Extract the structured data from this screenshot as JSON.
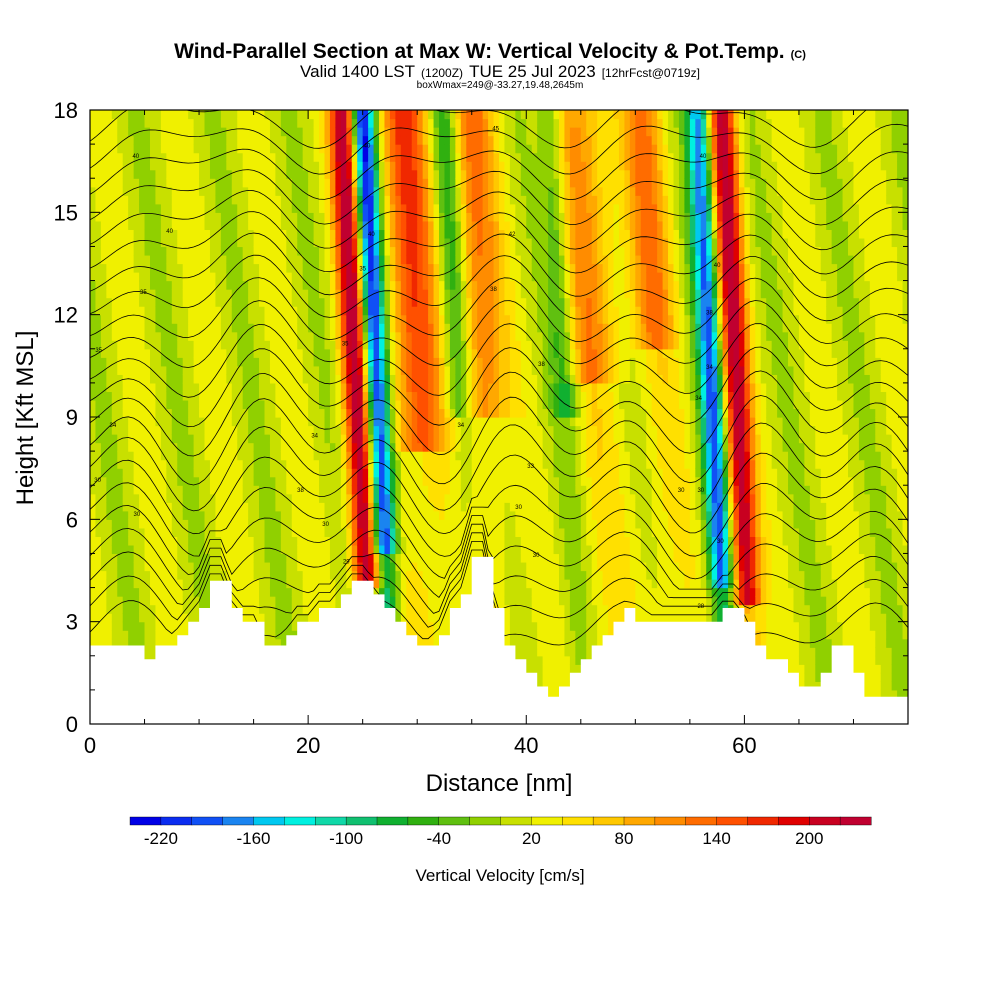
{
  "chart_data": {
    "type": "heatmap",
    "title": {
      "main": "Wind-Parallel Section at Max W: Vertical Velocity & Pot.Temp.",
      "copyright": "(C)",
      "valid_prefix": "Valid 1400 LST",
      "utc": "(1200Z)",
      "date": "TUE 25 Jul 2023",
      "forecast": "[12hrFcst@0719z]",
      "box_info": "boxWmax=249@-33.27,19.48,2645m"
    },
    "xlabel": "Distance [nm]",
    "ylabel": "Height [Kft MSL]",
    "xlim": [
      0,
      75
    ],
    "ylim": [
      0,
      18
    ],
    "x_ticks": [
      "0",
      "20",
      "40",
      "60"
    ],
    "x_tick_values": [
      0,
      20,
      40,
      60
    ],
    "y_ticks": [
      "0",
      "3",
      "6",
      "9",
      "12",
      "15",
      "18"
    ],
    "y_tick_values": [
      0,
      3,
      6,
      9,
      12,
      15,
      18
    ],
    "colorbar": {
      "title": "Vertical Velocity [cm/s]",
      "min": -240,
      "max": 240,
      "step": 20,
      "labels": [
        "-220",
        "-160",
        "-100",
        "-40",
        "20",
        "80",
        "140",
        "200"
      ],
      "label_values": [
        -220,
        -160,
        -100,
        -40,
        20,
        80,
        140,
        200
      ],
      "colors": [
        "#0000e6",
        "#0a2cf0",
        "#1050f5",
        "#1a84f0",
        "#00c8f0",
        "#00f0e0",
        "#10d8a8",
        "#10c070",
        "#10b030",
        "#30b010",
        "#60c010",
        "#90d000",
        "#c8e000",
        "#f0f000",
        "#ffe000",
        "#ffc800",
        "#ffa800",
        "#ff8c00",
        "#ff6c00",
        "#ff5000",
        "#f02800",
        "#e00000",
        "#c80020",
        "#c00030"
      ]
    },
    "updraft_x": [
      24.5,
      30,
      36,
      46,
      52,
      59.5
    ],
    "downdraft_x": [
      26,
      34,
      43.5,
      56.5
    ],
    "terrain": {
      "x": [
        0,
        4,
        5,
        6,
        7,
        8,
        9,
        10,
        11,
        12,
        13,
        14,
        15,
        16,
        17,
        18,
        19,
        20,
        21,
        22,
        23,
        24,
        25,
        26,
        27,
        28,
        29,
        30,
        31,
        32,
        33,
        34,
        35,
        36,
        37,
        38,
        39,
        40,
        41,
        42,
        43,
        44,
        45,
        46,
        47,
        48,
        49,
        50,
        51,
        52,
        53,
        54,
        55,
        56,
        57,
        58,
        59,
        60,
        61,
        62,
        63,
        64,
        65,
        66,
        67,
        68,
        69,
        70,
        71,
        72,
        73,
        74,
        75
      ],
      "kft": [
        2.3,
        2.3,
        1.9,
        2.3,
        2.3,
        2.6,
        3.0,
        3.4,
        4.2,
        4.2,
        3.4,
        3.0,
        3.0,
        2.3,
        2.3,
        2.6,
        3.0,
        3.0,
        3.4,
        3.4,
        3.8,
        4.2,
        4.2,
        3.8,
        3.4,
        3.0,
        2.6,
        2.3,
        2.3,
        2.6,
        3.4,
        3.8,
        4.9,
        4.9,
        3.4,
        2.3,
        1.9,
        1.5,
        1.1,
        0.8,
        1.1,
        1.5,
        1.9,
        2.3,
        2.6,
        3.0,
        3.4,
        3.0,
        3.0,
        3.0,
        3.0,
        3.0,
        3.0,
        3.0,
        3.0,
        3.4,
        3.4,
        3.0,
        2.3,
        1.9,
        1.9,
        1.5,
        1.1,
        1.1,
        1.5,
        2.3,
        2.3,
        1.5,
        0.8,
        0.8,
        0.8,
        0.8,
        0.8
      ]
    },
    "theta_contour_labels": [
      {
        "text": "40",
        "x": 4.2,
        "y": 16.6
      },
      {
        "text": "40",
        "x": 7.3,
        "y": 14.4
      },
      {
        "text": "35",
        "x": 4.9,
        "y": 12.6
      },
      {
        "text": "35",
        "x": 0.8,
        "y": 10.9
      },
      {
        "text": "34",
        "x": 2.1,
        "y": 8.7
      },
      {
        "text": "30",
        "x": 0.7,
        "y": 7.1
      },
      {
        "text": "30",
        "x": 4.3,
        "y": 6.1
      },
      {
        "text": "34",
        "x": 20.6,
        "y": 8.4
      },
      {
        "text": "38",
        "x": 19.3,
        "y": 6.8
      },
      {
        "text": "30",
        "x": 21.6,
        "y": 5.8
      },
      {
        "text": "29",
        "x": 23.5,
        "y": 4.7
      },
      {
        "text": "40",
        "x": 25.4,
        "y": 16.9
      },
      {
        "text": "40",
        "x": 25.8,
        "y": 14.3
      },
      {
        "text": "35",
        "x": 25.0,
        "y": 13.3
      },
      {
        "text": "35",
        "x": 23.4,
        "y": 11.1
      },
      {
        "text": "45",
        "x": 37.2,
        "y": 17.4
      },
      {
        "text": "42",
        "x": 38.7,
        "y": 14.3
      },
      {
        "text": "38",
        "x": 37.0,
        "y": 12.7
      },
      {
        "text": "38",
        "x": 41.4,
        "y": 10.5
      },
      {
        "text": "34",
        "x": 34.0,
        "y": 8.7
      },
      {
        "text": "33",
        "x": 40.4,
        "y": 7.5
      },
      {
        "text": "30",
        "x": 39.3,
        "y": 6.3
      },
      {
        "text": "30",
        "x": 40.9,
        "y": 4.9
      },
      {
        "text": "40",
        "x": 56.2,
        "y": 16.6
      },
      {
        "text": "40",
        "x": 57.5,
        "y": 13.4
      },
      {
        "text": "38",
        "x": 56.8,
        "y": 12.0
      },
      {
        "text": "34",
        "x": 56.8,
        "y": 10.4
      },
      {
        "text": "34",
        "x": 55.8,
        "y": 9.5
      },
      {
        "text": "30",
        "x": 54.2,
        "y": 6.8
      },
      {
        "text": "30",
        "x": 56.0,
        "y": 6.8
      },
      {
        "text": "30",
        "x": 57.8,
        "y": 5.3
      },
      {
        "text": "28",
        "x": 56.0,
        "y": 3.4
      }
    ]
  }
}
